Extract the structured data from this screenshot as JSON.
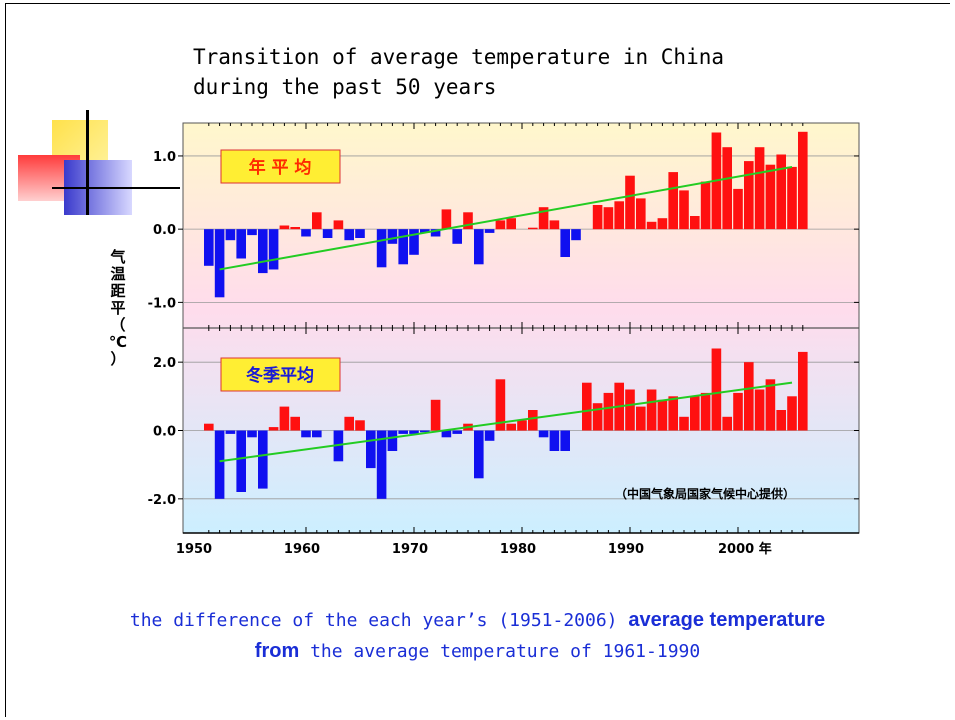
{
  "slide": {
    "title_line1": "Transition of average temperature in China",
    "title_line2": "during the past 50 years",
    "caption_part1": "the difference of the each year’s (1951-2006) ",
    "caption_bold1": "average temperature",
    "caption_bold2": "from",
    "caption_part2": " the average temperature of 1961-1990"
  },
  "colors": {
    "positive": "#ff1010",
    "negative": "#1010f0",
    "trend": "#22cc22",
    "label_box": "#ffee33",
    "label_text": "#ff2a00"
  },
  "chart_data": [
    {
      "type": "bar",
      "panel_label": "年 平 均",
      "ylabel": "气温距平（℃）",
      "ylim": [
        -1.35,
        1.45
      ],
      "yticks": [
        "1.0",
        "0.0",
        "-1.0"
      ],
      "ytick_values": [
        1.0,
        0.0,
        -1.0
      ],
      "x": [
        1951,
        1952,
        1953,
        1954,
        1955,
        1956,
        1957,
        1958,
        1959,
        1960,
        1961,
        1962,
        1963,
        1964,
        1965,
        1966,
        1967,
        1968,
        1969,
        1970,
        1971,
        1972,
        1973,
        1974,
        1975,
        1976,
        1977,
        1978,
        1979,
        1980,
        1981,
        1982,
        1983,
        1984,
        1985,
        1986,
        1987,
        1988,
        1989,
        1990,
        1991,
        1992,
        1993,
        1994,
        1995,
        1996,
        1997,
        1998,
        1999,
        2000,
        2001,
        2002,
        2003,
        2004,
        2005,
        2006
      ],
      "values": [
        -0.5,
        -0.93,
        -0.15,
        -0.4,
        -0.08,
        -0.6,
        -0.55,
        0.05,
        0.03,
        -0.1,
        0.23,
        -0.12,
        0.12,
        -0.15,
        -0.12,
        0.0,
        -0.52,
        -0.2,
        -0.48,
        -0.35,
        -0.05,
        -0.1,
        0.27,
        -0.2,
        0.23,
        -0.48,
        -0.05,
        0.12,
        0.15,
        0.0,
        0.02,
        0.3,
        0.12,
        -0.38,
        -0.15,
        0.0,
        0.33,
        0.3,
        0.38,
        0.73,
        0.42,
        0.1,
        0.15,
        0.78,
        0.53,
        0.18,
        0.65,
        1.32,
        1.12,
        0.55,
        0.93,
        1.12,
        0.88,
        1.02,
        0.85,
        1.33
      ],
      "trend": {
        "x": [
          1952,
          2005
        ],
        "y": [
          -0.55,
          0.85
        ]
      }
    },
    {
      "type": "bar",
      "panel_label": "冬季平均",
      "ylim": [
        -3.0,
        3.0
      ],
      "yticks": [
        "2.0",
        "0.0",
        "-2.0"
      ],
      "ytick_values": [
        2.0,
        0.0,
        -2.0
      ],
      "xticks": [
        "1950",
        "1960",
        "1970",
        "1980",
        "1990",
        "2000 年"
      ],
      "xtick_values": [
        1950,
        1960,
        1970,
        1980,
        1990,
        2000
      ],
      "annotation": "（中国气象局国家气候中心提供）",
      "x": [
        1951,
        1952,
        1953,
        1954,
        1955,
        1956,
        1957,
        1958,
        1959,
        1960,
        1961,
        1962,
        1963,
        1964,
        1965,
        1966,
        1967,
        1968,
        1969,
        1970,
        1971,
        1972,
        1973,
        1974,
        1975,
        1976,
        1977,
        1978,
        1979,
        1980,
        1981,
        1982,
        1983,
        1984,
        1985,
        1986,
        1987,
        1988,
        1989,
        1990,
        1991,
        1992,
        1993,
        1994,
        1995,
        1996,
        1997,
        1998,
        1999,
        2000,
        2001,
        2002,
        2003,
        2004,
        2005,
        2006
      ],
      "values": [
        0.2,
        -2.0,
        -0.1,
        -1.8,
        -0.2,
        -1.7,
        0.1,
        0.7,
        0.4,
        -0.2,
        -0.2,
        0.0,
        -0.9,
        0.4,
        0.3,
        -1.1,
        -2.0,
        -0.6,
        -0.1,
        -0.1,
        -0.05,
        0.9,
        -0.2,
        -0.1,
        0.2,
        -1.4,
        -0.3,
        1.5,
        0.2,
        0.3,
        0.6,
        -0.2,
        -0.6,
        -0.6,
        0.0,
        1.4,
        0.8,
        1.1,
        1.4,
        1.2,
        0.7,
        1.2,
        0.9,
        1.0,
        0.4,
        1.0,
        1.1,
        2.4,
        0.4,
        1.1,
        2.0,
        1.2,
        1.5,
        0.6,
        1.0,
        2.3
      ],
      "trend": {
        "x": [
          1952,
          2005
        ],
        "y": [
          -0.9,
          1.4
        ]
      }
    }
  ]
}
